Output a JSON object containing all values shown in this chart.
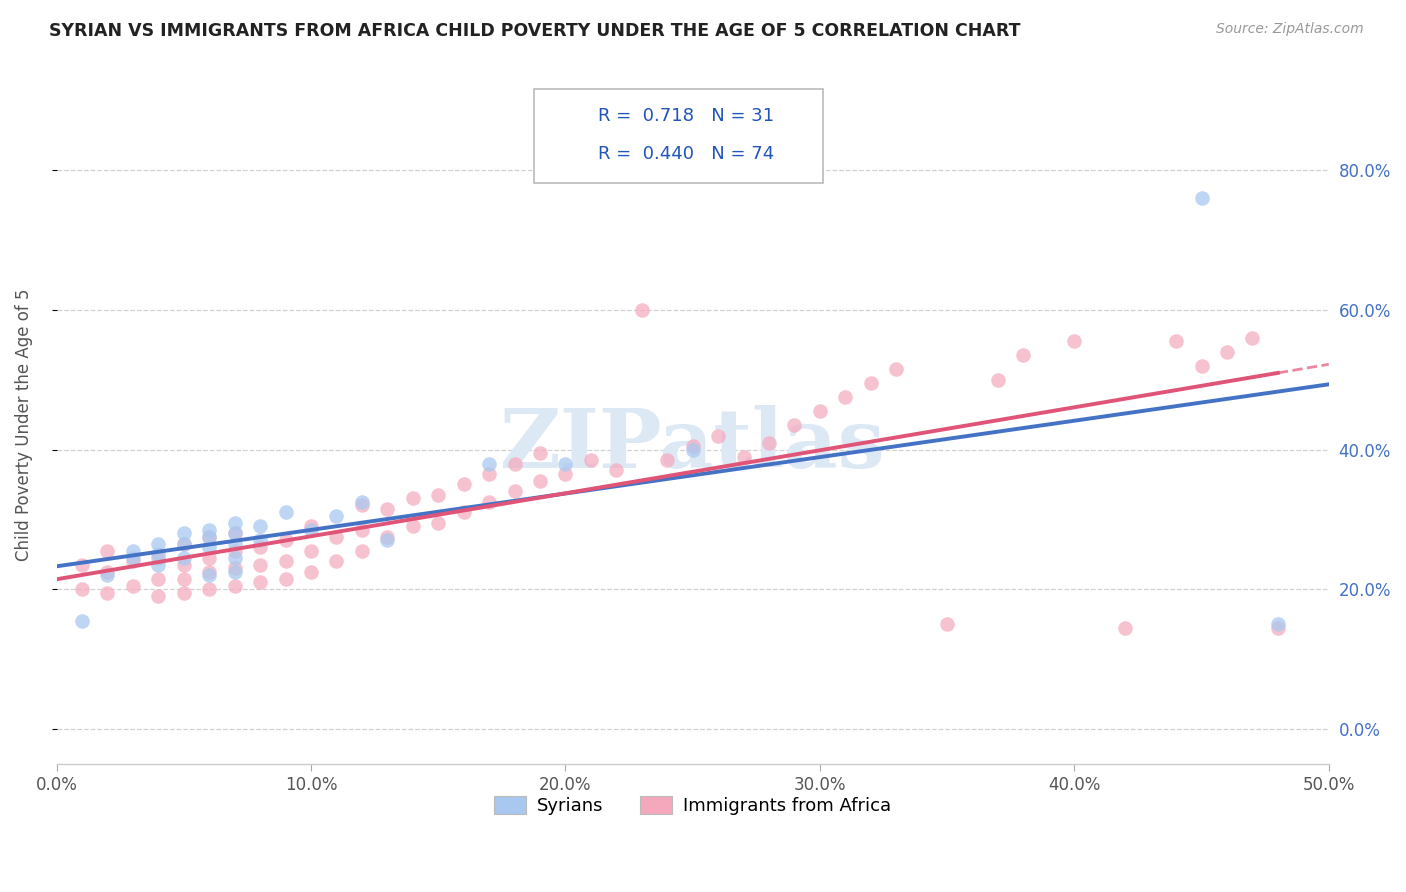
{
  "title": "SYRIAN VS IMMIGRANTS FROM AFRICA CHILD POVERTY UNDER THE AGE OF 5 CORRELATION CHART",
  "source": "Source: ZipAtlas.com",
  "ylabel": "Child Poverty Under the Age of 5",
  "xlim": [
    0.0,
    0.5
  ],
  "ylim": [
    -0.05,
    0.92
  ],
  "yticks": [
    0.0,
    0.2,
    0.4,
    0.6,
    0.8
  ],
  "xticks": [
    0.0,
    0.1,
    0.2,
    0.3,
    0.4,
    0.5
  ],
  "legend_labels": [
    "Syrians",
    "Immigrants from Africa"
  ],
  "legend_R": [
    "0.718",
    "0.440"
  ],
  "legend_N": [
    "31",
    "74"
  ],
  "syrian_color": "#a8c8f0",
  "africa_color": "#f5a8bc",
  "syrian_line_color": "#4472c4",
  "africa_line_color": "#e05577",
  "watermark_color": "#dde8f5",
  "background_color": "#ffffff",
  "grid_color": "#cccccc",
  "tick_color_right": "#4472c4",
  "syrian_scatter_x": [
    0.01,
    0.02,
    0.03,
    0.03,
    0.04,
    0.04,
    0.04,
    0.05,
    0.05,
    0.05,
    0.06,
    0.06,
    0.06,
    0.06,
    0.07,
    0.07,
    0.07,
    0.07,
    0.07,
    0.08,
    0.08,
    0.09,
    0.1,
    0.11,
    0.12,
    0.13,
    0.17,
    0.2,
    0.25,
    0.45,
    0.48
  ],
  "syrian_scatter_y": [
    0.155,
    0.22,
    0.245,
    0.255,
    0.235,
    0.25,
    0.265,
    0.245,
    0.265,
    0.28,
    0.22,
    0.26,
    0.275,
    0.285,
    0.225,
    0.245,
    0.265,
    0.28,
    0.295,
    0.27,
    0.29,
    0.31,
    0.285,
    0.305,
    0.325,
    0.27,
    0.38,
    0.38,
    0.4,
    0.76,
    0.15
  ],
  "africa_scatter_x": [
    0.01,
    0.01,
    0.02,
    0.02,
    0.02,
    0.03,
    0.03,
    0.04,
    0.04,
    0.04,
    0.05,
    0.05,
    0.05,
    0.05,
    0.06,
    0.06,
    0.06,
    0.06,
    0.07,
    0.07,
    0.07,
    0.07,
    0.08,
    0.08,
    0.08,
    0.09,
    0.09,
    0.09,
    0.1,
    0.1,
    0.1,
    0.11,
    0.11,
    0.12,
    0.12,
    0.12,
    0.13,
    0.13,
    0.14,
    0.14,
    0.15,
    0.15,
    0.16,
    0.16,
    0.17,
    0.17,
    0.18,
    0.18,
    0.19,
    0.19,
    0.2,
    0.21,
    0.22,
    0.23,
    0.24,
    0.25,
    0.26,
    0.27,
    0.28,
    0.29,
    0.3,
    0.31,
    0.32,
    0.33,
    0.35,
    0.37,
    0.38,
    0.4,
    0.42,
    0.44,
    0.45,
    0.46,
    0.47,
    0.48
  ],
  "africa_scatter_y": [
    0.2,
    0.235,
    0.195,
    0.225,
    0.255,
    0.205,
    0.24,
    0.19,
    0.215,
    0.245,
    0.195,
    0.215,
    0.235,
    0.265,
    0.2,
    0.225,
    0.245,
    0.275,
    0.205,
    0.23,
    0.255,
    0.28,
    0.21,
    0.235,
    0.26,
    0.215,
    0.24,
    0.27,
    0.225,
    0.255,
    0.29,
    0.24,
    0.275,
    0.255,
    0.285,
    0.32,
    0.275,
    0.315,
    0.29,
    0.33,
    0.295,
    0.335,
    0.31,
    0.35,
    0.325,
    0.365,
    0.34,
    0.38,
    0.355,
    0.395,
    0.365,
    0.385,
    0.37,
    0.6,
    0.385,
    0.405,
    0.42,
    0.39,
    0.41,
    0.435,
    0.455,
    0.475,
    0.495,
    0.515,
    0.15,
    0.5,
    0.535,
    0.555,
    0.145,
    0.555,
    0.52,
    0.54,
    0.56,
    0.145
  ]
}
